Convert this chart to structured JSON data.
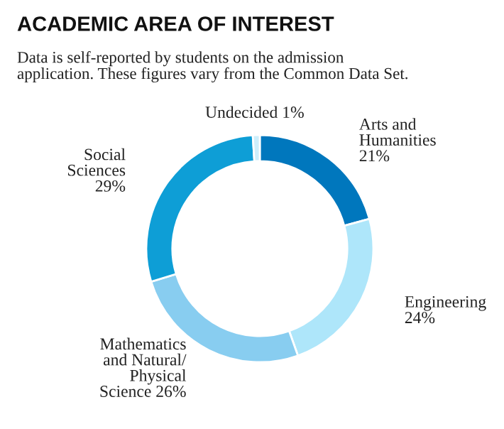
{
  "chart_data": {
    "type": "donut",
    "title": "ACADEMIC AREA OF INTEREST",
    "subtitle": "Data is self-reported by students on the admission\napplication. These figures vary from the Common Data Set.",
    "categories": [
      "Arts and\nHumanities\n",
      "Engineering\n",
      "Mathematics\nand Natural/\nPhysical\nScience",
      "Social\nSciences\n",
      "Undecided"
    ],
    "values": [
      21,
      24,
      26,
      29,
      1
    ],
    "value_labels": [
      "21%",
      "24%",
      "26%",
      "29%",
      "1%"
    ],
    "colors": [
      "#0077bd",
      "#aee6fa",
      "#88cdf0",
      "#0e9ed6",
      "#cdeefb"
    ],
    "legend": false
  }
}
